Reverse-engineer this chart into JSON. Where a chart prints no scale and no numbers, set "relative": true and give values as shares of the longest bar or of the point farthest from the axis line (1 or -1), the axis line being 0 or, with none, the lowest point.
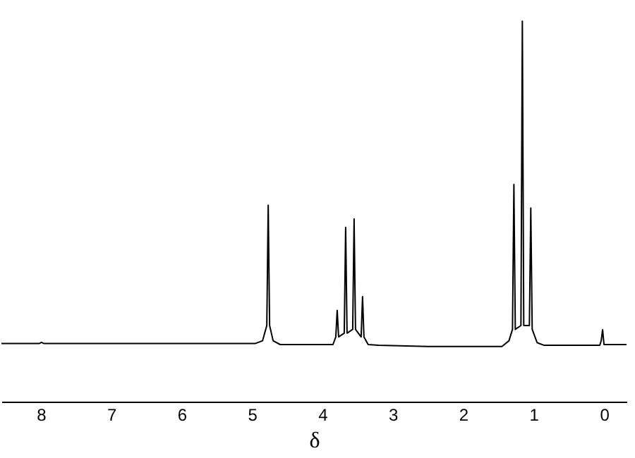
{
  "chart_data": {
    "type": "line",
    "relative": true,
    "xlabel": "δ",
    "xlim": [
      8.56,
      -0.32
    ],
    "xticks": [
      8,
      7,
      6,
      5,
      4,
      3,
      2,
      1,
      0
    ],
    "grid": false,
    "marker": "none",
    "line_style": "solid",
    "x": [
      8.56,
      8.02,
      7.99,
      7.96,
      4.95,
      4.85,
      4.79,
      4.77,
      4.75,
      4.7,
      4.6,
      3.85,
      3.81,
      3.79,
      3.77,
      3.69,
      3.67,
      3.65,
      3.57,
      3.55,
      3.53,
      3.45,
      3.43,
      3.41,
      3.35,
      3.2,
      2.5,
      1.45,
      1.35,
      1.3,
      1.28,
      1.26,
      1.18,
      1.16,
      1.14,
      1.06,
      1.04,
      1.02,
      0.95,
      0.85,
      0.06,
      0.04,
      0.02,
      0.0,
      -0.32
    ],
    "series": [
      {
        "color": "#000000",
        "values": [
          0.153,
          0.153,
          0.156,
          0.153,
          0.153,
          0.16,
          0.2,
          0.516,
          0.2,
          0.16,
          0.15,
          0.15,
          0.17,
          0.24,
          0.17,
          0.18,
          0.458,
          0.18,
          0.19,
          0.48,
          0.19,
          0.17,
          0.276,
          0.17,
          0.15,
          0.148,
          0.145,
          0.145,
          0.16,
          0.19,
          0.571,
          0.19,
          0.2,
          1.0,
          0.2,
          0.2,
          0.509,
          0.19,
          0.155,
          0.148,
          0.148,
          0.16,
          0.189,
          0.15,
          0.15
        ]
      }
    ]
  }
}
